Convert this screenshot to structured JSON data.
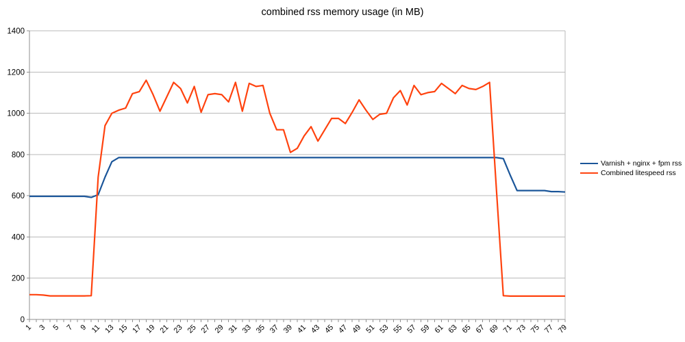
{
  "chart_data": {
    "type": "line",
    "title": "combined rss memory usage (in MB)",
    "xlabel": "",
    "ylabel": "",
    "ylim": [
      0,
      1400
    ],
    "ytick_interval": 200,
    "yticks": [
      0,
      200,
      400,
      600,
      800,
      1000,
      1200,
      1400
    ],
    "grid": "horizontal",
    "legend_position": "right",
    "x_labels_shown": "odd values 1 through 79, rotated 45 degrees",
    "x": [
      1,
      2,
      3,
      4,
      5,
      6,
      7,
      8,
      9,
      10,
      11,
      12,
      13,
      14,
      15,
      16,
      17,
      18,
      19,
      20,
      21,
      22,
      23,
      24,
      25,
      26,
      27,
      28,
      29,
      30,
      31,
      32,
      33,
      34,
      35,
      36,
      37,
      38,
      39,
      40,
      41,
      42,
      43,
      44,
      45,
      46,
      47,
      48,
      49,
      50,
      51,
      52,
      53,
      54,
      55,
      56,
      57,
      58,
      59,
      60,
      61,
      62,
      63,
      64,
      65,
      66,
      67,
      68,
      69,
      70,
      71,
      72,
      73,
      74,
      75,
      76,
      77,
      78,
      79
    ],
    "series": [
      {
        "name": "Varnish + nginx + fpm rss",
        "color": "#1a5599",
        "values": [
          597,
          597,
          597,
          597,
          597,
          597,
          597,
          597,
          597,
          592,
          605,
          690,
          765,
          785,
          785,
          785,
          785,
          785,
          785,
          785,
          785,
          785,
          785,
          785,
          785,
          785,
          785,
          785,
          785,
          785,
          785,
          785,
          785,
          785,
          785,
          785,
          785,
          785,
          785,
          785,
          785,
          785,
          785,
          785,
          785,
          785,
          785,
          785,
          785,
          785,
          785,
          785,
          785,
          785,
          785,
          785,
          785,
          785,
          785,
          785,
          785,
          785,
          785,
          785,
          785,
          785,
          785,
          785,
          785,
          780,
          700,
          625,
          625,
          625,
          625,
          625,
          620,
          620,
          618
        ]
      },
      {
        "name": "Combined litespeed rss",
        "color": "#ff420e",
        "values": [
          120,
          120,
          118,
          114,
          114,
          114,
          114,
          114,
          114,
          115,
          690,
          940,
          1000,
          1015,
          1025,
          1095,
          1105,
          1160,
          1090,
          1010,
          1080,
          1150,
          1120,
          1050,
          1130,
          1005,
          1090,
          1095,
          1090,
          1055,
          1150,
          1010,
          1145,
          1130,
          1135,
          1000,
          920,
          920,
          810,
          830,
          890,
          935,
          865,
          920,
          975,
          975,
          950,
          1005,
          1065,
          1015,
          970,
          995,
          1000,
          1075,
          1110,
          1040,
          1135,
          1090,
          1100,
          1105,
          1145,
          1120,
          1095,
          1135,
          1120,
          1115,
          1130,
          1150,
          630,
          115,
          113,
          113,
          113,
          113,
          113,
          113,
          113,
          113,
          113
        ]
      }
    ],
    "colors": {
      "background": "#ffffff",
      "gridline": "#b9b9b9",
      "axis": "#8f8f8f",
      "text": "#000000"
    }
  }
}
